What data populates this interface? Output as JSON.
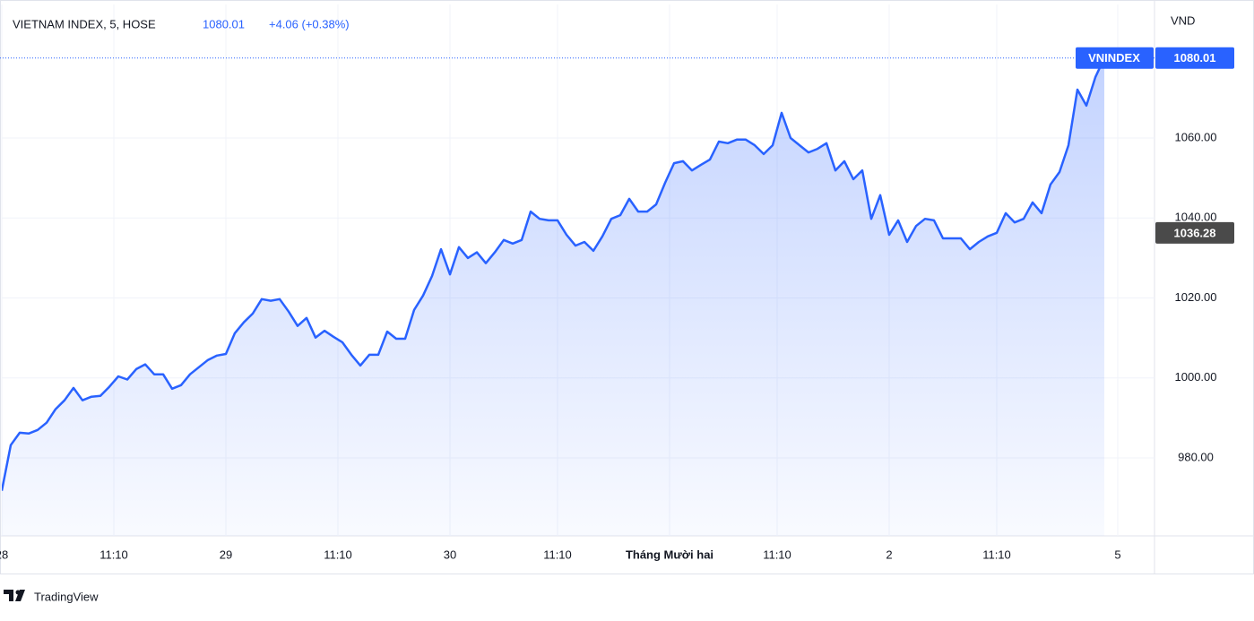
{
  "chart_data": {
    "type": "area",
    "title": "VIETNAM INDEX, 5, HOSE",
    "price": "1080.01",
    "change": "+4.06 (+0.38%)",
    "unit": "VND",
    "crosshair": 1036.28,
    "brand": "TradingView",
    "grid": true,
    "x": [
      0,
      2,
      4,
      6,
      8,
      10,
      12,
      14,
      16,
      18,
      20,
      22,
      24,
      26,
      28,
      30,
      32,
      34,
      36,
      38,
      40,
      42,
      44,
      46,
      48,
      50,
      52,
      54,
      56,
      58,
      60,
      62,
      64,
      66,
      68,
      70,
      72,
      74,
      76,
      78,
      80,
      82,
      84,
      86,
      88,
      90,
      92,
      94,
      96,
      98,
      100,
      102,
      104,
      106,
      108,
      110,
      112,
      114,
      116,
      118,
      120,
      122,
      124,
      126,
      128,
      130,
      132,
      134,
      136,
      138,
      140,
      142,
      144,
      146,
      148,
      150,
      152,
      154,
      156,
      158,
      160,
      162,
      164,
      166,
      168,
      170,
      172,
      174,
      176,
      178,
      180,
      182,
      184,
      186,
      188,
      190,
      192,
      194,
      196,
      198,
      200,
      202,
      204,
      206,
      208,
      210,
      212,
      214,
      216,
      218,
      220,
      222,
      224,
      226,
      228,
      230,
      232,
      234,
      236,
      238,
      240,
      242,
      244,
      246
    ],
    "series": [
      {
        "name": "VNINDEX",
        "color": "#2962ff",
        "values": [
          971.8,
          983.2,
          986.3,
          986.1,
          987,
          988.8,
          992.2,
          994.4,
          997.5,
          994.4,
          995.3,
          995.5,
          997.8,
          1000.4,
          999.6,
          1002.2,
          1003.4,
          1000.9,
          1000.9,
          997.3,
          998.2,
          1000.9,
          1002.7,
          1004.5,
          1005.6,
          1006,
          1011.2,
          1013.9,
          1016.1,
          1019.7,
          1019.3,
          1019.7,
          1016.6,
          1013,
          1015,
          1010.1,
          1011.8,
          1010.3,
          1008.9,
          1005.8,
          1003.1,
          1005.8,
          1005.8,
          1011.6,
          1009.8,
          1009.8,
          1017,
          1020.6,
          1025.5,
          1032.2,
          1025.9,
          1032.7,
          1030,
          1031.4,
          1028.7,
          1031.4,
          1034.5,
          1033.6,
          1034.5,
          1041.6,
          1039.8,
          1039.4,
          1039.4,
          1035.8,
          1033.1,
          1034,
          1031.8,
          1035.4,
          1039.8,
          1040.7,
          1044.8,
          1041.6,
          1041.6,
          1043.4,
          1048.8,
          1053.7,
          1054.2,
          1051.9,
          1053.3,
          1054.6,
          1059.1,
          1058.7,
          1059.6,
          1059.6,
          1058.2,
          1056,
          1058.2,
          1066.3,
          1060,
          1058.2,
          1056.4,
          1057.3,
          1058.7,
          1051.9,
          1054.2,
          1049.7,
          1051.9,
          1039.8,
          1045.7,
          1035.8,
          1039.4,
          1034,
          1038,
          1039.8,
          1039.4,
          1034.9,
          1034.9,
          1034.9,
          1032.2,
          1034,
          1035.4,
          1036.3,
          1041.2,
          1038.9,
          1039.8,
          1043.9,
          1041.2,
          1048.4,
          1051.5,
          1058.2,
          1072.1,
          1068.1,
          1075.2,
          1080.01
        ]
      }
    ],
    "xlim": [
      0,
      257.2
    ],
    "xticks": [
      {
        "value": 0,
        "label": "28"
      },
      {
        "value": 25,
        "label": "11:10"
      },
      {
        "value": 50,
        "label": "29"
      },
      {
        "value": 75,
        "label": "11:10"
      },
      {
        "value": 100,
        "label": "30"
      },
      {
        "value": 124,
        "label": "11:10"
      },
      {
        "value": 149,
        "label": "Tháng Mười hai"
      },
      {
        "value": 173,
        "label": "11:10"
      },
      {
        "value": 198,
        "label": "2"
      },
      {
        "value": 222,
        "label": "11:10"
      },
      {
        "value": 249,
        "label": "5"
      }
    ],
    "ylim": [
      960.5,
      1093.4
    ],
    "yticks": [
      {
        "value": 980,
        "label": "980.00"
      },
      {
        "value": 1000,
        "label": "1000.00"
      },
      {
        "value": 1020,
        "label": "1020.00"
      },
      {
        "value": 1040,
        "label": "1040.00"
      },
      {
        "value": 1060,
        "label": "1060.00"
      }
    ]
  }
}
